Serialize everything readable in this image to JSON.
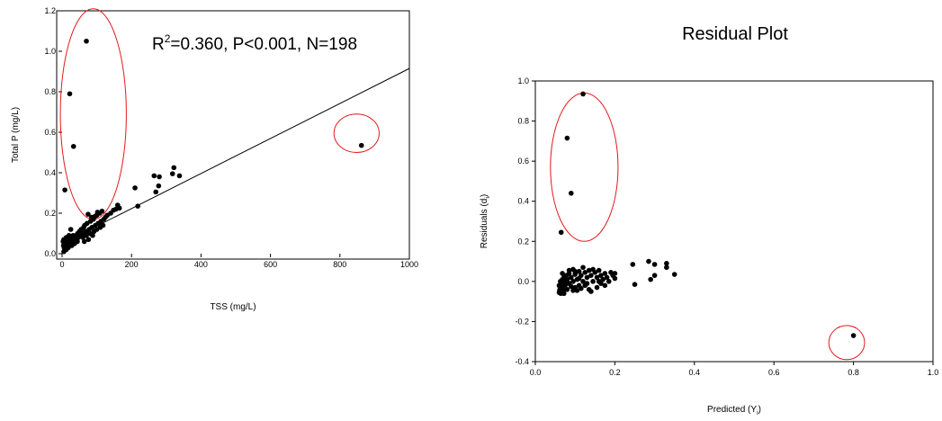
{
  "chart_data": [
    {
      "type": "scatter",
      "title": "",
      "xlabel": "TSS (mg/L)",
      "ylabel": "Total P (mg/L)",
      "xlim": [
        0,
        1000
      ],
      "ylim": [
        0,
        1.2
      ],
      "xticks": [
        "0",
        "200",
        "400",
        "600",
        "800",
        "1000"
      ],
      "yticks": [
        "0.0",
        "0.2",
        "0.4",
        "0.6",
        "0.8",
        "1.0",
        "1.2"
      ],
      "annotation": {
        "r2_label": "R",
        "r2_sup": "2",
        "rest": "=0.360, P<0.001, N=198"
      },
      "grid": false,
      "regression_line": {
        "x": [
          0,
          1000
        ],
        "y": [
          0.05,
          0.915
        ]
      },
      "highlight_color": "#e41a1c",
      "outlier_ellipses": [
        {
          "cx": 90,
          "cy": 0.69,
          "rx": 95,
          "ry": 0.52
        },
        {
          "cx": 848,
          "cy": 0.595,
          "rx": 65,
          "ry": 0.095
        }
      ],
      "points": [
        [
          70,
          1.05
        ],
        [
          22,
          0.79
        ],
        [
          33,
          0.53
        ],
        [
          862,
          0.535
        ],
        [
          8,
          0.315
        ],
        [
          210,
          0.325
        ],
        [
          218,
          0.235
        ],
        [
          265,
          0.385
        ],
        [
          280,
          0.38
        ],
        [
          318,
          0.395
        ],
        [
          322,
          0.425
        ],
        [
          338,
          0.385
        ],
        [
          270,
          0.305
        ],
        [
          278,
          0.335
        ],
        [
          155,
          0.22
        ],
        [
          160,
          0.24
        ],
        [
          165,
          0.225
        ],
        [
          148,
          0.215
        ],
        [
          140,
          0.2
        ],
        [
          130,
          0.19
        ],
        [
          125,
          0.18
        ],
        [
          120,
          0.17
        ],
        [
          112,
          0.16
        ],
        [
          108,
          0.2
        ],
        [
          104,
          0.15
        ],
        [
          100,
          0.19
        ],
        [
          96,
          0.14
        ],
        [
          90,
          0.17
        ],
        [
          86,
          0.13
        ],
        [
          82,
          0.16
        ],
        [
          78,
          0.12
        ],
        [
          75,
          0.195
        ],
        [
          72,
          0.15
        ],
        [
          68,
          0.11
        ],
        [
          65,
          0.14
        ],
        [
          62,
          0.13
        ],
        [
          58,
          0.1
        ],
        [
          55,
          0.12
        ],
        [
          52,
          0.09
        ],
        [
          50,
          0.11
        ],
        [
          47,
          0.08
        ],
        [
          45,
          0.1
        ],
        [
          42,
          0.07
        ],
        [
          40,
          0.09
        ],
        [
          38,
          0.06
        ],
        [
          36,
          0.08
        ],
        [
          34,
          0.07
        ],
        [
          32,
          0.09
        ],
        [
          30,
          0.05
        ],
        [
          28,
          0.08
        ],
        [
          26,
          0.06
        ],
        [
          25,
          0.12
        ],
        [
          24,
          0.07
        ],
        [
          22,
          0.05
        ],
        [
          20,
          0.09
        ],
        [
          18,
          0.06
        ],
        [
          16,
          0.04
        ],
        [
          15,
          0.07
        ],
        [
          14,
          0.05
        ],
        [
          12,
          0.08
        ],
        [
          11,
          0.03
        ],
        [
          10,
          0.06
        ],
        [
          9,
          0.04
        ],
        [
          8,
          0.02
        ],
        [
          7,
          0.05
        ],
        [
          6,
          0.03
        ],
        [
          5,
          0.07
        ],
        [
          5,
          0.01
        ],
        [
          4,
          0.04
        ],
        [
          3,
          0.06
        ],
        [
          12,
          0.02
        ],
        [
          18,
          0.03
        ],
        [
          28,
          0.04
        ],
        [
          36,
          0.05
        ],
        [
          44,
          0.06
        ],
        [
          60,
          0.08
        ],
        [
          70,
          0.09
        ],
        [
          80,
          0.1
        ],
        [
          92,
          0.11
        ],
        [
          100,
          0.12
        ],
        [
          110,
          0.13
        ],
        [
          118,
          0.14
        ],
        [
          95,
          0.185
        ],
        [
          85,
          0.18
        ],
        [
          115,
          0.21
        ],
        [
          102,
          0.205
        ],
        [
          88,
          0.09
        ],
        [
          76,
          0.07
        ],
        [
          64,
          0.06
        ]
      ]
    },
    {
      "type": "scatter",
      "title": "Residual Plot",
      "xlabel": "Predicted (Y",
      "xlabel_sub": "i",
      "xlabel_end": ")",
      "ylabel": "Residuals (d",
      "ylabel_sub": "i",
      "ylabel_end": ")",
      "xlim": [
        0,
        1.0
      ],
      "ylim": [
        -0.4,
        1.0
      ],
      "xticks": [
        "0.0",
        "0.2",
        "0.4",
        "0.6",
        "0.8",
        "1.0"
      ],
      "yticks": [
        "-0.4",
        "-0.2",
        "0.0",
        "0.2",
        "0.4",
        "0.6",
        "0.8",
        "1.0"
      ],
      "grid": false,
      "highlight_color": "#e41a1c",
      "outlier_ellipses": [
        {
          "cx": 0.123,
          "cy": 0.57,
          "rx": 0.085,
          "ry": 0.37
        },
        {
          "cx": 0.783,
          "cy": -0.305,
          "rx": 0.045,
          "ry": 0.085
        }
      ],
      "points": [
        [
          0.12,
          0.935
        ],
        [
          0.08,
          0.715
        ],
        [
          0.09,
          0.44
        ],
        [
          0.065,
          0.245
        ],
        [
          0.8,
          -0.27
        ],
        [
          0.245,
          0.085
        ],
        [
          0.285,
          0.1
        ],
        [
          0.3,
          0.085
        ],
        [
          0.33,
          0.09
        ],
        [
          0.33,
          0.07
        ],
        [
          0.35,
          0.035
        ],
        [
          0.3,
          0.03
        ],
        [
          0.29,
          0.01
        ],
        [
          0.25,
          -0.015
        ],
        [
          0.2,
          0.04
        ],
        [
          0.195,
          0.03
        ],
        [
          0.19,
          0.045
        ],
        [
          0.18,
          0.02
        ],
        [
          0.175,
          0.04
        ],
        [
          0.17,
          0.01
        ],
        [
          0.165,
          0.03
        ],
        [
          0.16,
          0.055
        ],
        [
          0.155,
          0.02
        ],
        [
          0.15,
          0.045
        ],
        [
          0.145,
          0.0
        ],
        [
          0.14,
          0.03
        ],
        [
          0.135,
          0.055
        ],
        [
          0.13,
          -0.01
        ],
        [
          0.13,
          0.02
        ],
        [
          0.125,
          0.045
        ],
        [
          0.12,
          0.07
        ],
        [
          0.12,
          0.0
        ],
        [
          0.115,
          0.03
        ],
        [
          0.11,
          -0.02
        ],
        [
          0.11,
          0.05
        ],
        [
          0.105,
          0.01
        ],
        [
          0.1,
          0.035
        ],
        [
          0.1,
          -0.03
        ],
        [
          0.095,
          0.0
        ],
        [
          0.095,
          0.06
        ],
        [
          0.09,
          0.02
        ],
        [
          0.09,
          -0.025
        ],
        [
          0.085,
          0.04
        ],
        [
          0.085,
          -0.01
        ],
        [
          0.08,
          0.01
        ],
        [
          0.08,
          -0.04
        ],
        [
          0.078,
          0.03
        ],
        [
          0.075,
          -0.02
        ],
        [
          0.075,
          0.0
        ],
        [
          0.072,
          0.02
        ],
        [
          0.07,
          -0.03
        ],
        [
          0.07,
          -0.05
        ],
        [
          0.068,
          0.01
        ],
        [
          0.066,
          -0.015
        ],
        [
          0.065,
          -0.04
        ],
        [
          0.064,
          -0.06
        ],
        [
          0.063,
          0.0
        ],
        [
          0.062,
          -0.03
        ],
        [
          0.061,
          -0.045
        ],
        [
          0.06,
          -0.02
        ],
        [
          0.06,
          -0.055
        ],
        [
          0.14,
          -0.05
        ],
        [
          0.155,
          -0.03
        ],
        [
          0.165,
          -0.01
        ],
        [
          0.185,
          0.0
        ],
        [
          0.105,
          -0.045
        ],
        [
          0.115,
          -0.035
        ],
        [
          0.125,
          -0.02
        ],
        [
          0.135,
          -0.04
        ],
        [
          0.145,
          0.06
        ],
        [
          0.16,
          0.0
        ],
        [
          0.2,
          0.015
        ],
        [
          0.175,
          -0.02
        ],
        [
          0.11,
          0.015
        ],
        [
          0.085,
          0.055
        ],
        [
          0.095,
          -0.045
        ],
        [
          0.1,
          0.05
        ],
        [
          0.068,
          0.04
        ],
        [
          0.072,
          -0.06
        ]
      ]
    }
  ]
}
